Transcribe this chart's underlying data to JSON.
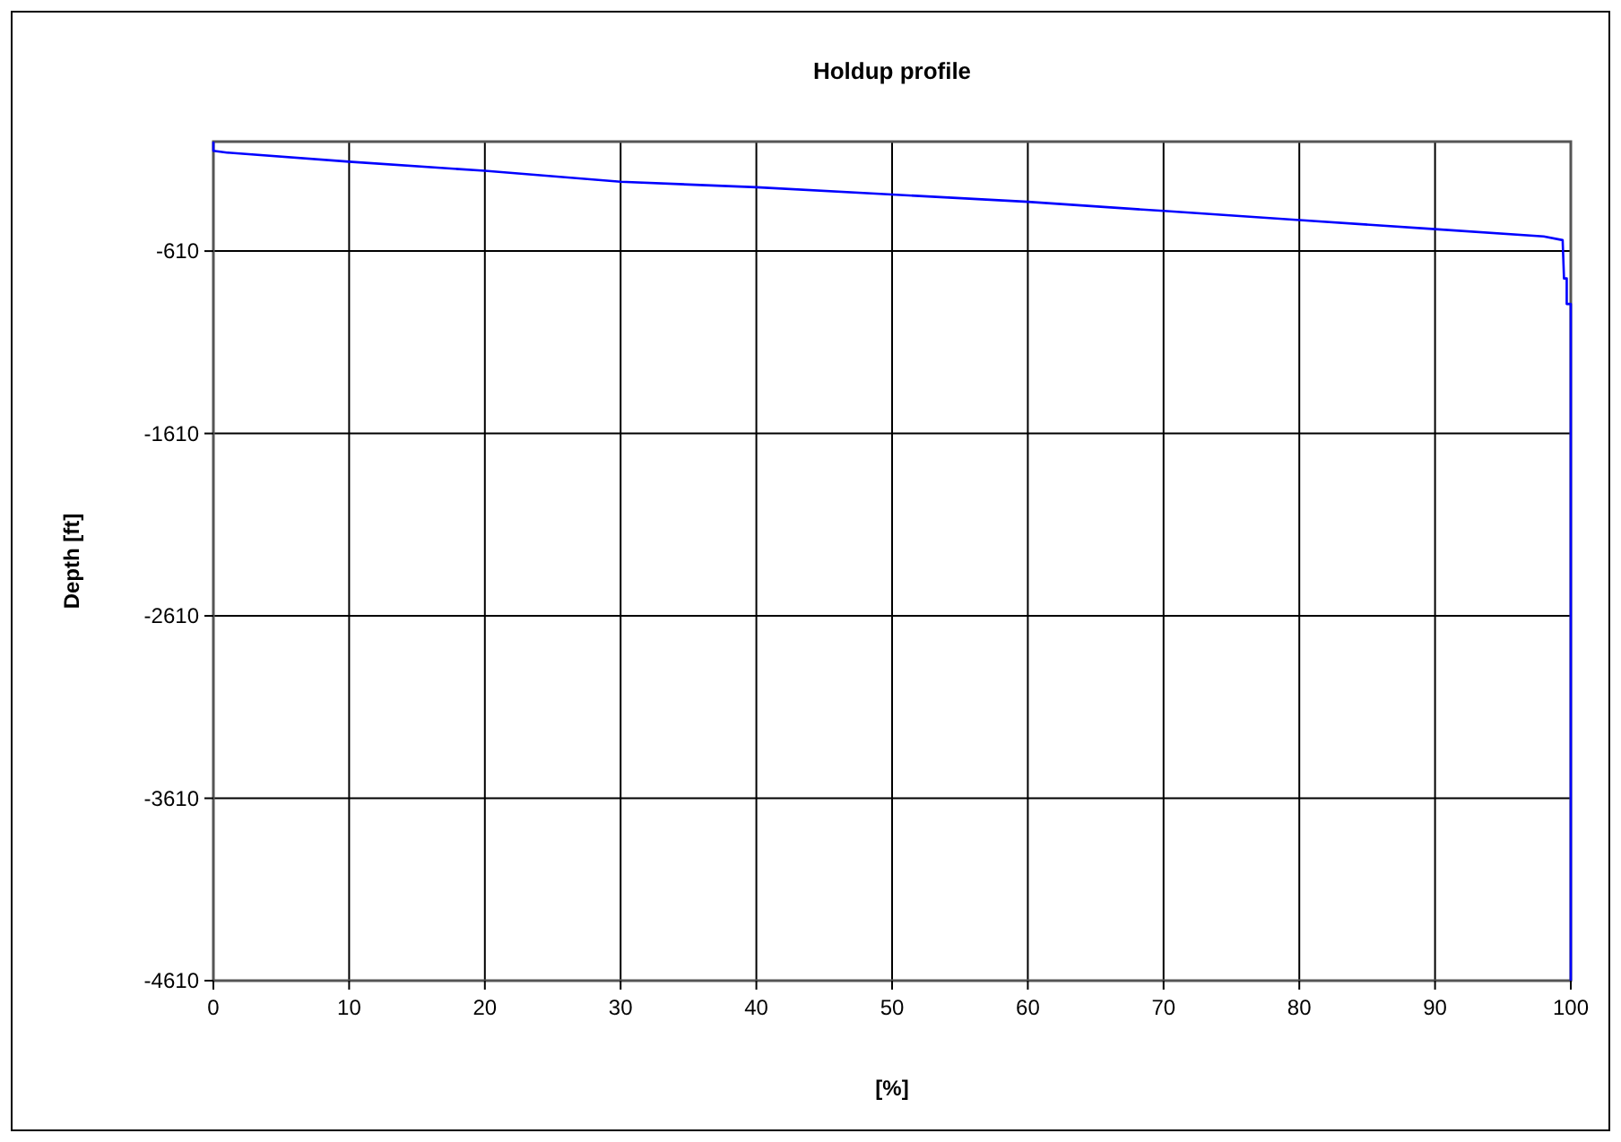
{
  "chart_data": {
    "type": "line",
    "title": "Holdup profile",
    "xlabel": "[%]",
    "ylabel": "Depth [ft]",
    "xlim": [
      0,
      100
    ],
    "xticks": [
      0,
      10,
      20,
      30,
      40,
      50,
      60,
      70,
      80,
      90,
      100
    ],
    "ylim": [
      -4610,
      -10
    ],
    "yticks": [
      -4610,
      -3610,
      -2610,
      -1610,
      -610
    ],
    "grid": true,
    "marker": "none",
    "line_style": "solid",
    "series": [
      {
        "color": "#0000ff",
        "x": [
          0,
          0,
          1,
          10,
          20,
          30,
          40,
          50,
          60,
          70,
          80,
          90,
          98,
          99.4,
          99.5,
          99.7,
          99.7,
          100,
          100
        ],
        "values": [
          -10,
          -60,
          -70,
          -120,
          -170,
          -230,
          -260,
          -300,
          -340,
          -390,
          -440,
          -490,
          -530,
          -550,
          -760,
          -760,
          -900,
          -900,
          -4610
        ]
      }
    ]
  }
}
